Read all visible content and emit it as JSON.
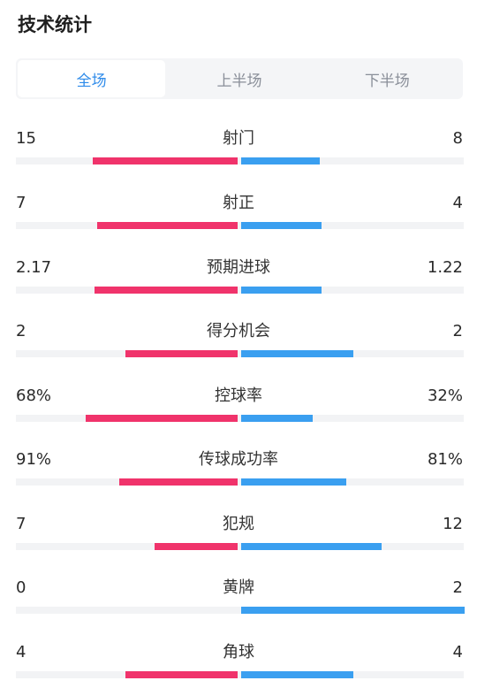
{
  "title": "技术统计",
  "tabs": [
    {
      "label": "全场",
      "active": true
    },
    {
      "label": "上半场",
      "active": false
    },
    {
      "label": "下半场",
      "active": false
    }
  ],
  "colors": {
    "home": "#f0336b",
    "away": "#3a9ff0",
    "active_tab": "#2e8bea"
  },
  "stats": [
    {
      "label": "射门",
      "left": "15",
      "right": "8",
      "left_fraction": 0.65,
      "right_fraction": 0.35
    },
    {
      "label": "射正",
      "left": "7",
      "right": "4",
      "left_fraction": 0.63,
      "right_fraction": 0.36
    },
    {
      "label": "预期进球",
      "left": "2.17",
      "right": "1.22",
      "left_fraction": 0.64,
      "right_fraction": 0.36
    },
    {
      "label": "得分机会",
      "left": "2",
      "right": "2",
      "left_fraction": 0.5,
      "right_fraction": 0.5
    },
    {
      "label": "控球率",
      "left": "68%",
      "right": "32%",
      "left_fraction": 0.68,
      "right_fraction": 0.32
    },
    {
      "label": "传球成功率",
      "left": "91%",
      "right": "81%",
      "left_fraction": 0.53,
      "right_fraction": 0.47
    },
    {
      "label": "犯规",
      "left": "7",
      "right": "12",
      "left_fraction": 0.37,
      "right_fraction": 0.63
    },
    {
      "label": "黄牌",
      "left": "0",
      "right": "2",
      "left_fraction": 0.0,
      "right_fraction": 1.0
    },
    {
      "label": "角球",
      "left": "4",
      "right": "4",
      "left_fraction": 0.5,
      "right_fraction": 0.5
    }
  ]
}
